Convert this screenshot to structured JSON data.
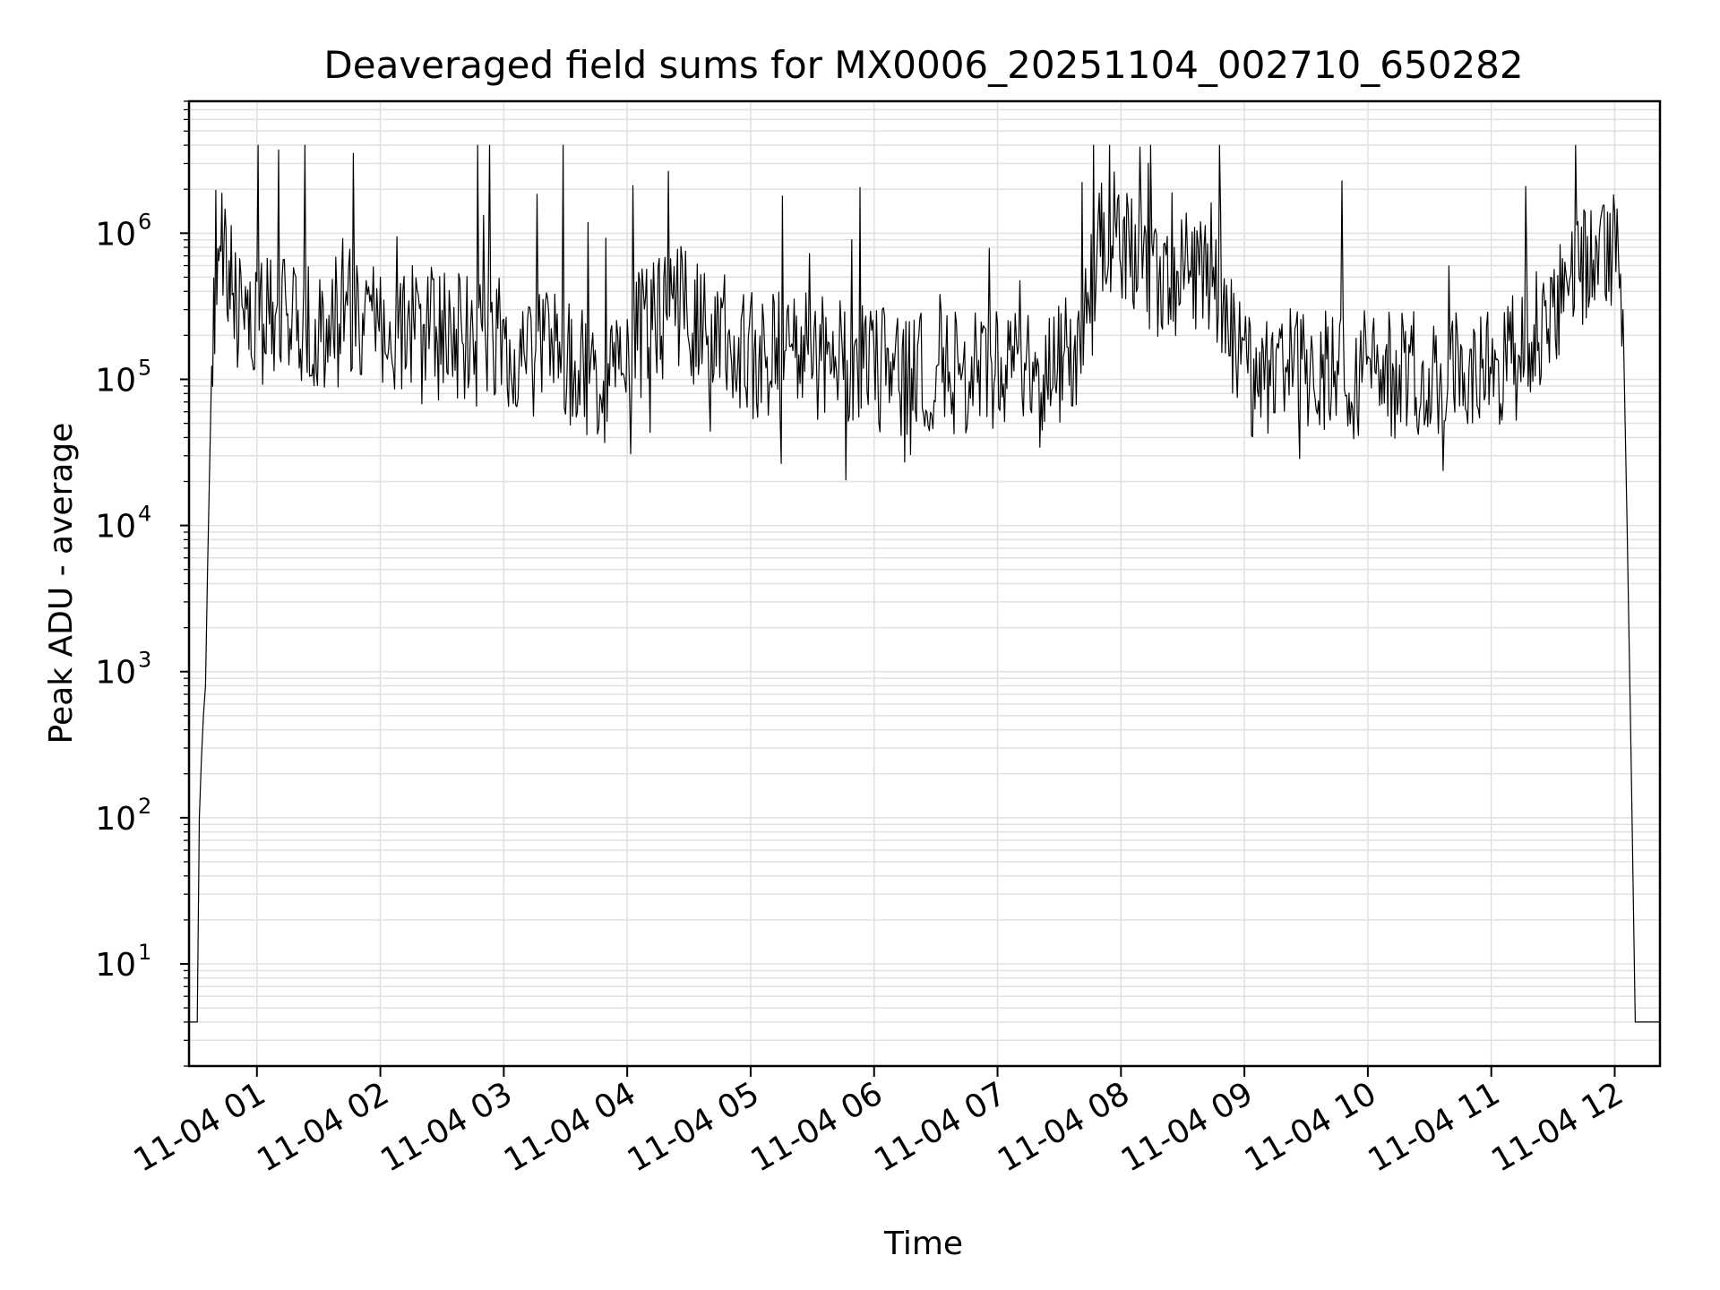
{
  "chart_data": {
    "type": "line",
    "title": "Deaveraged field sums for MX0006_20251104_002710_650282",
    "xlabel": "Time",
    "ylabel": "Peak ADU - average",
    "yscale": "log",
    "ylim": [
      2,
      8000000
    ],
    "xlim": [
      "2025-11-04 00:27",
      "2025-11-04 12:22"
    ],
    "grid": true,
    "line_color": "#000000",
    "grid_color": "#e0e0e0",
    "y_ticks": [
      {
        "value": 10,
        "base": "10",
        "exp": "1"
      },
      {
        "value": 100,
        "base": "10",
        "exp": "2"
      },
      {
        "value": 1000,
        "base": "10",
        "exp": "3"
      },
      {
        "value": 10000,
        "base": "10",
        "exp": "4"
      },
      {
        "value": 100000,
        "base": "10",
        "exp": "5"
      },
      {
        "value": 1000000,
        "base": "10",
        "exp": "6"
      }
    ],
    "x_ticks": [
      {
        "time": "2025-11-04 01:00",
        "label": "11-04 01"
      },
      {
        "time": "2025-11-04 02:00",
        "label": "11-04 02"
      },
      {
        "time": "2025-11-04 03:00",
        "label": "11-04 03"
      },
      {
        "time": "2025-11-04 04:00",
        "label": "11-04 04"
      },
      {
        "time": "2025-11-04 05:00",
        "label": "11-04 05"
      },
      {
        "time": "2025-11-04 06:00",
        "label": "11-04 06"
      },
      {
        "time": "2025-11-04 07:00",
        "label": "11-04 07"
      },
      {
        "time": "2025-11-04 08:00",
        "label": "11-04 08"
      },
      {
        "time": "2025-11-04 09:00",
        "label": "11-04 09"
      },
      {
        "time": "2025-11-04 10:00",
        "label": "11-04 10"
      },
      {
        "time": "2025-11-04 11:00",
        "label": "11-04 11"
      },
      {
        "time": "2025-11-04 12:00",
        "label": "11-04 12"
      }
    ],
    "series": [
      {
        "x": [
          "2025-11-04 00:27",
          "2025-11-04 00:30",
          "2025-11-04 00:31",
          "2025-11-04 00:32",
          "2025-11-04 00:33",
          "2025-11-04 00:34",
          "2025-11-04 00:35",
          "2025-11-04 00:36",
          "2025-11-04 00:38",
          "2025-11-04 00:40",
          "2025-11-04 00:42",
          "2025-11-04 00:44",
          "2025-11-04 00:46",
          "2025-11-04 00:48",
          "2025-11-04 00:50",
          "2025-11-04 00:55",
          "2025-11-04 01:00",
          "2025-11-04 01:10",
          "2025-11-04 01:20",
          "2025-11-04 01:30",
          "2025-11-04 01:40",
          "2025-11-04 01:48",
          "2025-11-04 02:00",
          "2025-11-04 02:15",
          "2025-11-04 02:30",
          "2025-11-04 02:45",
          "2025-11-04 03:00",
          "2025-11-04 03:15",
          "2025-11-04 03:30",
          "2025-11-04 03:45",
          "2025-11-04 04:00",
          "2025-11-04 04:10",
          "2025-11-04 04:20",
          "2025-11-04 04:30",
          "2025-11-04 04:45",
          "2025-11-04 05:00",
          "2025-11-04 05:20",
          "2025-11-04 05:40",
          "2025-11-04 06:00",
          "2025-11-04 06:20",
          "2025-11-04 06:40",
          "2025-11-04 07:00",
          "2025-11-04 07:20",
          "2025-11-04 07:40",
          "2025-11-04 07:50",
          "2025-11-04 08:00",
          "2025-11-04 08:15",
          "2025-11-04 08:30",
          "2025-11-04 08:45",
          "2025-11-04 09:00",
          "2025-11-04 09:20",
          "2025-11-04 09:40",
          "2025-11-04 10:00",
          "2025-11-04 10:20",
          "2025-11-04 10:40",
          "2025-11-04 11:00",
          "2025-11-04 11:15",
          "2025-11-04 11:30",
          "2025-11-04 11:45",
          "2025-11-04 12:00",
          "2025-11-04 12:04",
          "2025-11-04 12:06",
          "2025-11-04 12:08",
          "2025-11-04 12:10",
          "2025-11-04 12:12",
          "2025-11-04 12:14",
          "2025-11-04 12:22"
        ],
        "y": [
          4,
          4,
          4,
          100,
          250,
          500,
          800,
          5000,
          100000,
          500000,
          1000000,
          800000,
          700000,
          400000,
          300000,
          250000,
          250000,
          250000,
          250000,
          240000,
          250000,
          300000,
          250000,
          230000,
          200000,
          180000,
          180000,
          150000,
          130000,
          90000,
          150000,
          250000,
          400000,
          250000,
          200000,
          150000,
          150000,
          130000,
          120000,
          110000,
          110000,
          110000,
          100000,
          180000,
          800000,
          1000000,
          500000,
          500000,
          600000,
          110000,
          110000,
          110000,
          110000,
          110000,
          110000,
          110000,
          200000,
          300000,
          600000,
          800000,
          300000,
          10000,
          250,
          4,
          4,
          4,
          4
        ]
      }
    ]
  }
}
